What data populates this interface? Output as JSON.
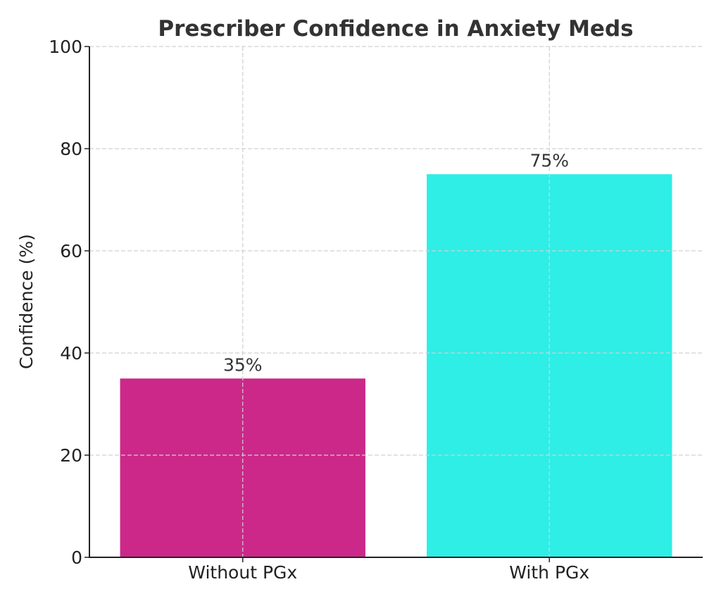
{
  "chart_data": {
    "type": "bar",
    "title": "Prescriber Confidence in Anxiety Meds",
    "xlabel": "",
    "ylabel": "Confidence (%)",
    "categories": [
      "Without PGx",
      "With PGx"
    ],
    "values": [
      35,
      75
    ],
    "data_labels": [
      "35%",
      "75%"
    ],
    "colors": [
      "#cc288a",
      "#2eeee6"
    ],
    "ylim": [
      0,
      100
    ],
    "yticks": [
      0,
      20,
      40,
      60,
      80,
      100
    ],
    "ytick_labels": [
      "0",
      "20",
      "40",
      "60",
      "80",
      "100"
    ],
    "grid": true,
    "legend": "none"
  }
}
